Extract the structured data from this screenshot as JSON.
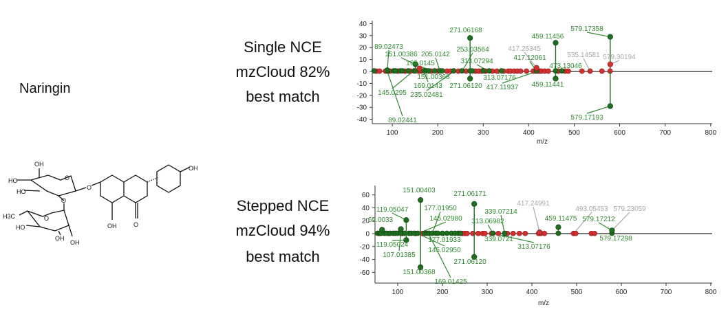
{
  "compound": {
    "name": "Naringin",
    "structure_labels": [
      "OH",
      "HO",
      "HO",
      "O",
      "O",
      "O",
      "O",
      "H3C",
      "HO",
      "OH",
      "OH",
      "OH",
      "O",
      "OH"
    ]
  },
  "panels": [
    {
      "lines": [
        "Single NCE",
        "mzCloud 82%",
        "best match"
      ]
    },
    {
      "lines": [
        "Stepped NCE",
        "mzCloud 94%",
        "best match"
      ]
    }
  ],
  "colors": {
    "matched": "#1f6e1f",
    "unmatched": "#d03030",
    "label_matched": "#2f8a2f",
    "label_unmatched": "#a8a8a8",
    "baseline": "#777777"
  },
  "chart_data": [
    {
      "type": "mirror-stem",
      "xlabel": "m/z",
      "xlim": [
        60,
        800
      ],
      "ylim": [
        -45,
        45
      ],
      "xticks": [
        100,
        200,
        300,
        400,
        500,
        600,
        700,
        800
      ],
      "yticks": [
        40,
        30,
        20,
        10,
        0,
        -10,
        -20,
        -30,
        -40
      ],
      "peaks": [
        {
          "mz": 89.02,
          "intensity": 1,
          "matched": true
        },
        {
          "mz": 151.0,
          "intensity": 6,
          "matched": true
        },
        {
          "mz": 271.06,
          "intensity": 28,
          "matched": true
        },
        {
          "mz": 459.11,
          "intensity": 24,
          "matched": true
        },
        {
          "mz": 579.17,
          "intensity": 29,
          "matched": true
        },
        {
          "mz": 579.3,
          "intensity": 6,
          "matched": false
        },
        {
          "mz": 417.25,
          "intensity": 3,
          "matched": false
        },
        {
          "mz": 160.0,
          "intensity": 2.5,
          "matched": false
        },
        {
          "mz": 271.06,
          "intensity": -6,
          "matched": true
        },
        {
          "mz": 459.11,
          "intensity": -6,
          "matched": true
        },
        {
          "mz": 579.17,
          "intensity": -29,
          "matched": true
        }
      ],
      "minor_matched": [
        60,
        90,
        103,
        107,
        118,
        122,
        135,
        148,
        151,
        170,
        175,
        180,
        193,
        205,
        210,
        235,
        253,
        271,
        276,
        300,
        313,
        340,
        417,
        459,
        473
      ],
      "minor_unmatched": [
        65,
        72,
        85,
        95,
        112,
        128,
        140,
        158,
        163,
        185,
        200,
        220,
        228,
        245,
        262,
        283,
        290,
        296,
        305,
        320,
        330,
        345,
        355,
        360,
        368,
        375,
        382,
        395,
        410,
        415,
        420,
        425,
        428,
        435,
        443,
        465,
        480,
        487,
        517,
        535,
        561,
        579
      ],
      "labels": [
        {
          "text": "89.02473",
          "color": "matched"
        },
        {
          "text": "151.00386",
          "color": "matched"
        },
        {
          "text": "193.0145",
          "color": "matched"
        },
        {
          "text": "205.0142",
          "color": "matched"
        },
        {
          "text": "253.03564",
          "color": "matched"
        },
        {
          "text": "271.06168",
          "color": "matched"
        },
        {
          "text": "313.07294",
          "color": "matched"
        },
        {
          "text": "417.25345",
          "color": "unmatched"
        },
        {
          "text": "417.12061",
          "color": "matched"
        },
        {
          "text": "459.11456",
          "color": "matched"
        },
        {
          "text": "535.14581",
          "color": "unmatched"
        },
        {
          "text": "579.30194",
          "color": "unmatched"
        },
        {
          "text": "473.13046",
          "color": "matched"
        },
        {
          "text": "579.17358",
          "color": "matched"
        },
        {
          "text": "151.00368",
          "color": "matched"
        },
        {
          "text": "169.0143",
          "color": "matched"
        },
        {
          "text": "145.0295",
          "color": "matched"
        },
        {
          "text": "235.02481",
          "color": "matched"
        },
        {
          "text": "271.06120",
          "color": "matched"
        },
        {
          "text": "313.07176",
          "color": "matched"
        },
        {
          "text": "417.11937",
          "color": "matched"
        },
        {
          "text": "459.11441",
          "color": "matched"
        },
        {
          "text": "89.02441",
          "color": "matched"
        },
        {
          "text": "579.17193",
          "color": "matched"
        }
      ]
    },
    {
      "type": "mirror-stem",
      "xlabel": "m/z",
      "xlim": [
        50,
        800
      ],
      "ylim": [
        -77,
        75
      ],
      "xticks": [
        100,
        200,
        300,
        400,
        500,
        600,
        700,
        800
      ],
      "yticks": [
        60,
        40,
        20,
        0,
        -20,
        -40,
        -60
      ],
      "peaks": [
        {
          "mz": 151.0,
          "intensity": 52,
          "matched": true
        },
        {
          "mz": 271.06,
          "intensity": 46,
          "matched": true
        },
        {
          "mz": 119.05,
          "intensity": 21,
          "matched": true
        },
        {
          "mz": 65.0,
          "intensity": 6,
          "matched": true
        },
        {
          "mz": 107.01,
          "intensity": 7,
          "matched": true
        },
        {
          "mz": 459.11,
          "intensity": 10,
          "matched": true
        },
        {
          "mz": 579.17,
          "intensity": 5,
          "matched": true
        },
        {
          "mz": 417.25,
          "intensity": 2,
          "matched": false
        },
        {
          "mz": 151.0,
          "intensity": -52,
          "matched": true
        },
        {
          "mz": 271.06,
          "intensity": -36,
          "matched": true
        },
        {
          "mz": 119.05,
          "intensity": -10,
          "matched": true
        }
      ],
      "minor_matched": [
        55,
        60,
        63,
        70,
        75,
        83,
        90,
        95,
        100,
        107,
        115,
        125,
        130,
        137,
        145,
        160,
        165,
        170,
        177,
        185,
        190,
        200,
        210,
        220,
        228,
        235,
        240,
        313,
        339,
        459,
        579
      ],
      "minor_unmatched": [
        58,
        80,
        110,
        140,
        155,
        245,
        250,
        255,
        268,
        280,
        290,
        295,
        310,
        325,
        345,
        358,
        372,
        385,
        415,
        420,
        428,
        493,
        498,
        533,
        540
      ],
      "labels": [
        {
          "text": "151.00403",
          "color": "matched"
        },
        {
          "text": "271.06171",
          "color": "matched"
        },
        {
          "text": "119.05047",
          "color": "matched"
        },
        {
          "text": "177.01950",
          "color": "matched"
        },
        {
          "text": "65.0033",
          "color": "matched"
        },
        {
          "text": "145.02980",
          "color": "matched"
        },
        {
          "text": "339.07214",
          "color": "matched"
        },
        {
          "text": "313.06982",
          "color": "matched"
        },
        {
          "text": "417.24991",
          "color": "unmatched"
        },
        {
          "text": "493.05453",
          "color": "unmatched"
        },
        {
          "text": "579.23059",
          "color": "unmatched"
        },
        {
          "text": "459.11475",
          "color": "matched"
        },
        {
          "text": "579.17212",
          "color": "matched"
        },
        {
          "text": "119.05024",
          "color": "matched"
        },
        {
          "text": "107.01385",
          "color": "matched"
        },
        {
          "text": "177.01933",
          "color": "matched"
        },
        {
          "text": "145.02950",
          "color": "matched"
        },
        {
          "text": "339.0721",
          "color": "matched"
        },
        {
          "text": "313.07176",
          "color": "matched"
        },
        {
          "text": "579.17298",
          "color": "matched"
        },
        {
          "text": "271.06120",
          "color": "matched"
        },
        {
          "text": "151.00368",
          "color": "matched"
        },
        {
          "text": "169.01425",
          "color": "matched"
        }
      ]
    }
  ]
}
